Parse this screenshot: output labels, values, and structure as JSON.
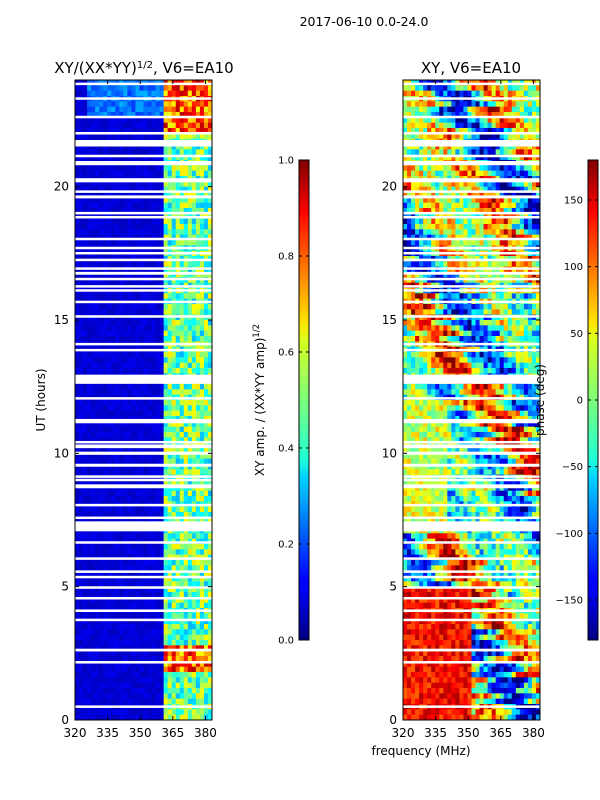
{
  "suptitle": "2017-06-10 0.0-24.0",
  "common_xlabel": "frequency (MHz)",
  "chart_data": [
    {
      "type": "heatmap",
      "title_base": "XY/(XX*YY)",
      "title_exp": "1/2",
      "title_suffix": ", V6=EA10",
      "ylabel": "UT (hours)",
      "xlim": [
        320,
        383
      ],
      "ylim": [
        0,
        24
      ],
      "xticks": [
        320,
        335,
        350,
        365,
        380
      ],
      "yticks": [
        0,
        5,
        10,
        15,
        20
      ],
      "colorbar": {
        "label_base": "XY amp. / (XX*YY amp)",
        "label_exp": "1/2",
        "range": [
          0.0,
          1.0
        ],
        "ticks": [
          "0.0",
          "0.2",
          "0.4",
          "0.6",
          "0.8",
          "1.0"
        ],
        "colormap": "jet"
      }
    },
    {
      "type": "heatmap",
      "title": "XY, V6=EA10",
      "xlim": [
        320,
        383
      ],
      "ylim": [
        0,
        24
      ],
      "xticks": [
        320,
        335,
        350,
        365,
        380
      ],
      "yticks": [
        0,
        5,
        10,
        15,
        20
      ],
      "colorbar": {
        "label": "phase (deg)",
        "range": [
          -180,
          180
        ],
        "ticks": [
          "−150",
          "−100",
          "−50",
          "0",
          "50",
          "100",
          "150"
        ],
        "tick_values": [
          -150,
          -100,
          -50,
          0,
          50,
          100,
          150
        ],
        "colormap": "jet"
      }
    }
  ]
}
